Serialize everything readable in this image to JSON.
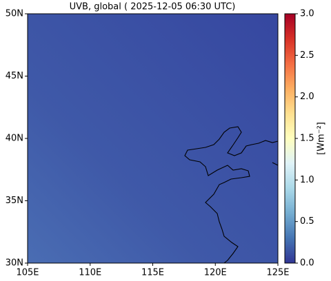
{
  "chart_data": {
    "type": "map",
    "title": "UVB, global ( 2025-12-05 06:30 UTC)",
    "xlim": [
      105,
      125
    ],
    "xticks": [
      {
        "value": 105,
        "label": "105E"
      },
      {
        "value": 110,
        "label": "110E"
      },
      {
        "value": 115,
        "label": "115E"
      },
      {
        "value": 120,
        "label": "120E"
      },
      {
        "value": 125,
        "label": "125E"
      }
    ],
    "ylim": [
      30,
      50
    ],
    "yticks": [
      {
        "value": 30,
        "label": "30N"
      },
      {
        "value": 35,
        "label": "35N"
      },
      {
        "value": 40,
        "label": "40N"
      },
      {
        "value": 45,
        "label": "45N"
      },
      {
        "value": 50,
        "label": "50N"
      }
    ],
    "colorbar": {
      "label": "[Wm⁻²]",
      "lim": [
        0,
        3
      ],
      "ticks": [
        {
          "value": 0,
          "label": "0.0"
        },
        0.5,
        {
          "value": 1,
          "label": "1.0"
        },
        1.5,
        {
          "value": 2,
          "label": "2.0"
        },
        2.5,
        {
          "value": 3,
          "label": "3.0"
        }
      ]
    }
  }
}
